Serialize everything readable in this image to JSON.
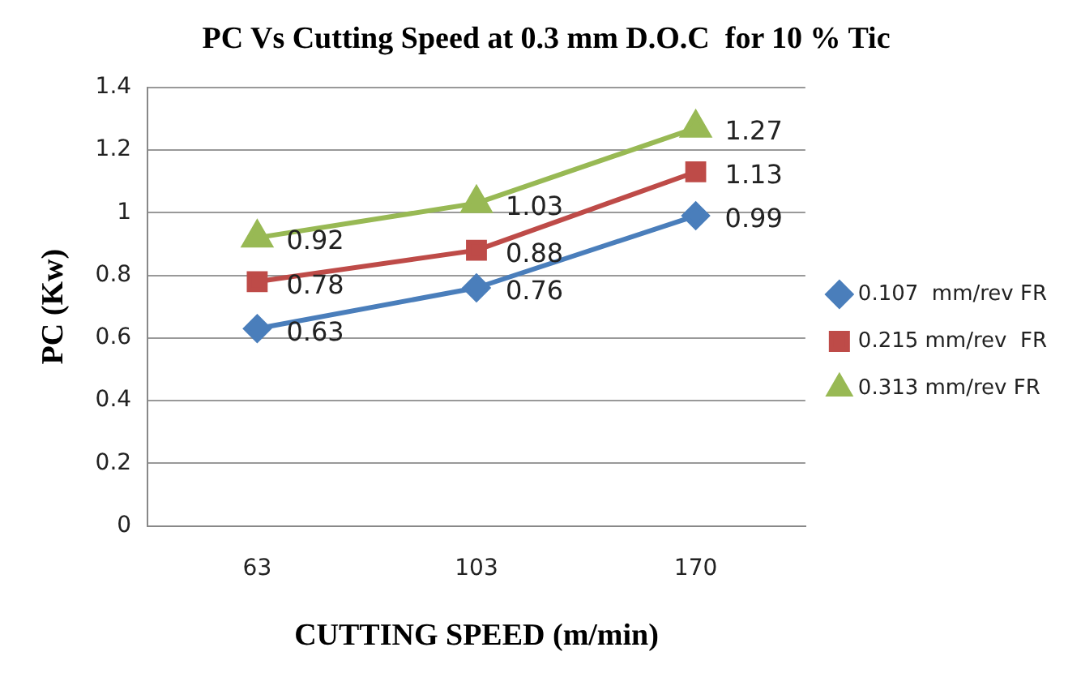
{
  "chart_data": {
    "type": "line",
    "title": "PC Vs Cutting Speed at 0.3 mm D.O.C  for 10 % Tic",
    "xlabel": "CUTTING SPEED (m/min)",
    "ylabel": "PC (Kw)",
    "categories": [
      "63",
      "103",
      "170"
    ],
    "series": [
      {
        "name": "0.107  mm/rev FR",
        "color": "#4a7ebb",
        "marker": "diamond",
        "values": [
          0.63,
          0.76,
          0.99
        ]
      },
      {
        "name": "0.215 mm/rev  FR",
        "color": "#be4b48",
        "marker": "square",
        "values": [
          0.78,
          0.88,
          1.13
        ]
      },
      {
        "name": "0.313 mm/rev FR",
        "color": "#98b954",
        "marker": "triangle",
        "values": [
          0.92,
          1.03,
          1.27
        ]
      }
    ],
    "ylim": [
      0,
      1.4
    ],
    "yticks": [
      0,
      0.2,
      0.4,
      0.6,
      0.8,
      1,
      1.2,
      1.4
    ],
    "grid": "y",
    "legend": "right",
    "data_labels": true
  }
}
